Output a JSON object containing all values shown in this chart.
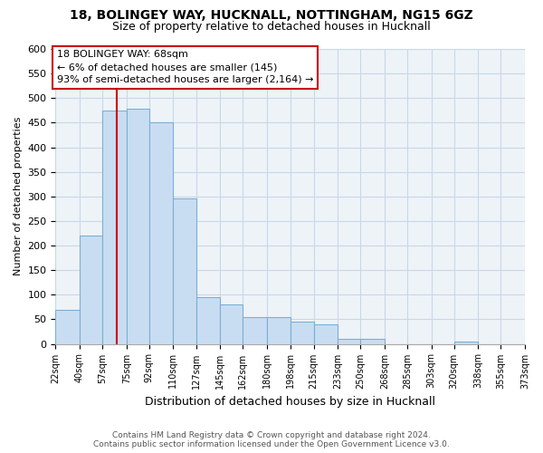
{
  "title": "18, BOLINGEY WAY, HUCKNALL, NOTTINGHAM, NG15 6GZ",
  "subtitle": "Size of property relative to detached houses in Hucknall",
  "xlabel": "Distribution of detached houses by size in Hucknall",
  "ylabel": "Number of detached properties",
  "bar_edges": [
    22,
    40,
    57,
    75,
    92,
    110,
    127,
    145,
    162,
    180,
    198,
    215,
    233,
    250,
    268,
    285,
    303,
    320,
    338,
    355,
    373
  ],
  "bar_heights": [
    70,
    220,
    475,
    478,
    450,
    295,
    95,
    80,
    55,
    55,
    45,
    40,
    10,
    10,
    0,
    0,
    0,
    5,
    0,
    0
  ],
  "bar_color": "#c9ddf2",
  "bar_edge_color": "#7bafd4",
  "property_line_x": 68,
  "property_line_color": "#cc0000",
  "annotation_box_color": "#cc0000",
  "annotation_lines": [
    "18 BOLINGEY WAY: 68sqm",
    "← 6% of detached houses are smaller (145)",
    "93% of semi-detached houses are larger (2,164) →"
  ],
  "ylim": [
    0,
    600
  ],
  "yticks": [
    0,
    50,
    100,
    150,
    200,
    250,
    300,
    350,
    400,
    450,
    500,
    550,
    600
  ],
  "x_tick_labels": [
    "22sqm",
    "40sqm",
    "57sqm",
    "75sqm",
    "92sqm",
    "110sqm",
    "127sqm",
    "145sqm",
    "162sqm",
    "180sqm",
    "198sqm",
    "215sqm",
    "233sqm",
    "250sqm",
    "268sqm",
    "285sqm",
    "303sqm",
    "320sqm",
    "338sqm",
    "355sqm",
    "373sqm"
  ],
  "footer_line1": "Contains HM Land Registry data © Crown copyright and database right 2024.",
  "footer_line2": "Contains public sector information licensed under the Open Government Licence v3.0.",
  "background_color": "#ffffff",
  "grid_color": "#c8d8e8",
  "grid_bg_color": "#eef3f8"
}
